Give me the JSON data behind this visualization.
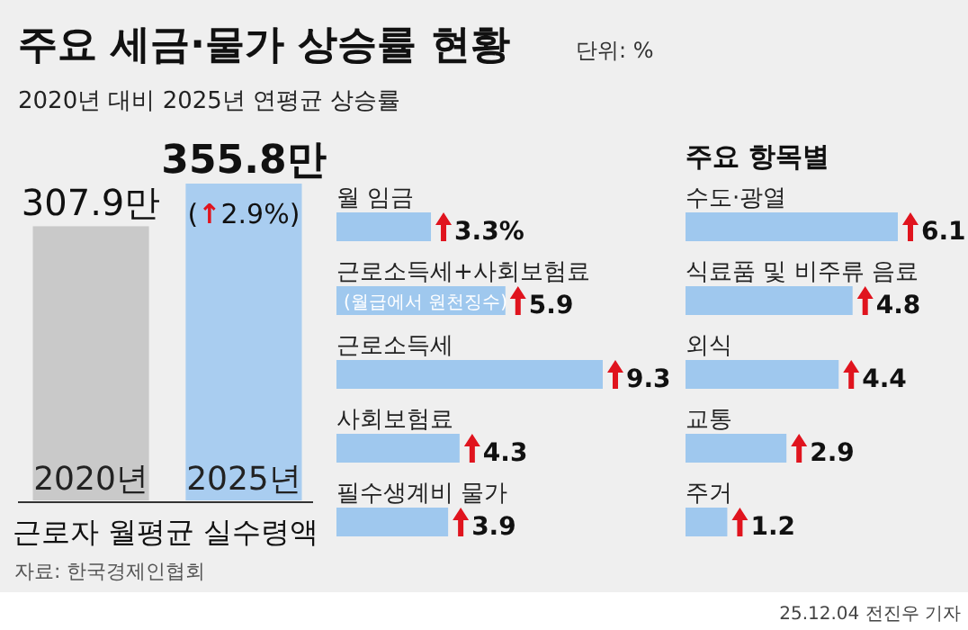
{
  "chart_data": [
    {
      "type": "bar",
      "title": "주요 세금·물가 상승률 현황",
      "subtitle": "2020년 대비 2025년 연평균 상승률",
      "xlabel": "근로자 월평균 실수령액",
      "categories": [
        "2020년",
        "2025년"
      ],
      "values": [
        307.9,
        355.8
      ],
      "colors": [
        "#c9c9c9",
        "#a9cdf0"
      ],
      "value_labels": [
        "307.9만",
        "355.8만"
      ],
      "annotations": [
        "단위: %",
        "(↑2.9%)",
        "자료: 한국경제인협회",
        "25.12.04 전진우 기자"
      ]
    },
    {
      "type": "bar",
      "orientation": "horizontal",
      "categories": [
        "월 임금",
        "근로소득세+사회보험료",
        "근로소득세",
        "사회보험료",
        "필수생계비 물가"
      ],
      "values": [
        3.3,
        5.9,
        9.3,
        4.3,
        3.9
      ],
      "color": "#9fc8ee",
      "value_labels": [
        "3.3%",
        "5.9",
        "9.3",
        "4.3",
        "3.9"
      ],
      "annotations": [
        "(월급에서 원천징수)"
      ]
    },
    {
      "type": "bar",
      "orientation": "horizontal",
      "title": "주요 항목별",
      "categories": [
        "수도·광열",
        "식료품 및 비주류 음료",
        "외식",
        "교통",
        "주거"
      ],
      "values": [
        6.1,
        4.8,
        4.4,
        2.9,
        1.2
      ],
      "color": "#9fc8ee",
      "value_labels": [
        "6.1",
        "4.8",
        "4.4",
        "2.9",
        "1.2"
      ]
    }
  ]
}
